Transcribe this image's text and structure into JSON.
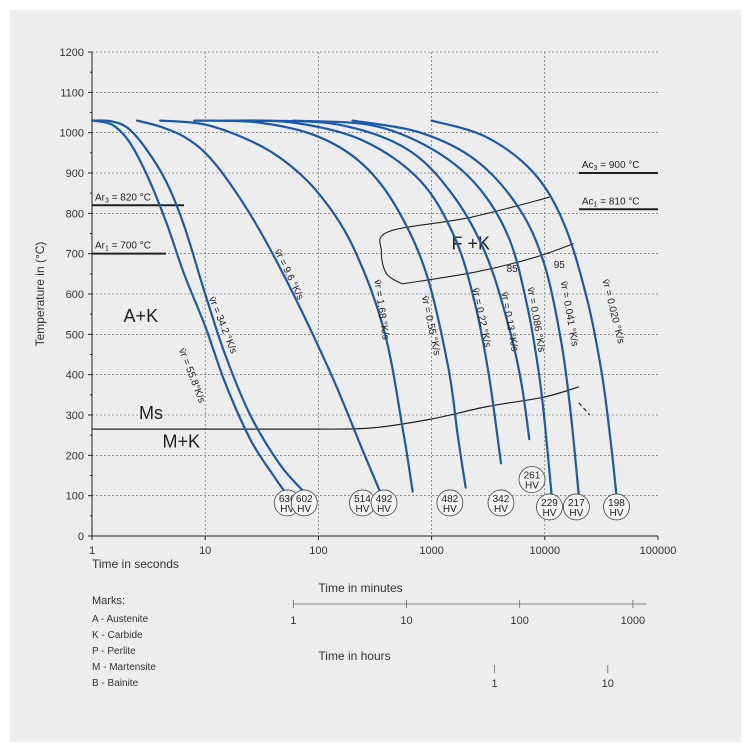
{
  "chart_data": {
    "type": "line",
    "title": "",
    "xlabel": "Time in seconds",
    "ylabel": "Temperature in (°C)",
    "x_scale": "log",
    "xlim": [
      1,
      100000
    ],
    "ylim": [
      0,
      1200
    ],
    "x_ticks": [
      "1",
      "10",
      "100",
      "1000",
      "10000",
      "100000"
    ],
    "y_ticks": [
      "0",
      "100",
      "200",
      "300",
      "400",
      "500",
      "600",
      "700",
      "800",
      "900",
      "1000",
      "1100",
      "1200"
    ],
    "grid": "vertical dashed at decades, horizontal dashed every 100 °C",
    "series": [
      {
        "name": "v̄r = 55.8 °K/s",
        "x": [
          1,
          1.5,
          2.1,
          3,
          4.5,
          6.5,
          10,
          15,
          25,
          40,
          57
        ],
        "y": [
          1030,
          1020,
          980,
          900,
          780,
          650,
          520,
          380,
          240,
          150,
          90
        ]
      },
      {
        "name": "v̄r = 34.2 °K/s",
        "x": [
          1,
          1.5,
          2.1,
          3,
          4.5,
          6.5,
          10,
          15,
          25,
          45,
          74
        ],
        "y": [
          1030,
          1028,
          1010,
          960,
          880,
          770,
          600,
          450,
          300,
          180,
          110
        ]
      },
      {
        "name": "v̄r = 9.6 °K/s",
        "x": [
          2.5,
          4,
          6.5,
          10,
          16,
          30,
          60,
          130,
          240,
          350
        ],
        "y": [
          1030,
          1015,
          990,
          950,
          880,
          760,
          600,
          400,
          220,
          110
        ]
      },
      {
        "name": "v̄r = 1.68 °K/s",
        "x": [
          4,
          10,
          25,
          50,
          100,
          200,
          380,
          560,
          680
        ],
        "y": [
          1030,
          1020,
          980,
          930,
          850,
          720,
          510,
          260,
          110
        ]
      },
      {
        "name": "v̄r = 0.55 °K/s",
        "x": [
          8,
          30,
          100,
          250,
          500,
          900,
          1400,
          1700,
          2000
        ],
        "y": [
          1030,
          1025,
          990,
          920,
          810,
          650,
          420,
          250,
          120
        ]
      },
      {
        "name": "v̄r = 0.22 °K/s",
        "x": [
          15,
          60,
          250,
          800,
          1600,
          2400,
          3200,
          4100
        ],
        "y": [
          1030,
          1025,
          980,
          880,
          740,
          580,
          400,
          180
        ]
      },
      {
        "name": "v̄r = 0.13 °K/s",
        "x": [
          30,
          150,
          600,
          1500,
          3000,
          4800,
          6200,
          7300
        ],
        "y": [
          1030,
          1020,
          960,
          850,
          700,
          520,
          380,
          240
        ]
      },
      {
        "name": "v̄r = 0.086 °K/s",
        "x": [
          60,
          300,
          1000,
          2500,
          4800,
          7000,
          8800,
          10000,
          11500
        ],
        "y": [
          1030,
          1018,
          960,
          870,
          740,
          570,
          410,
          280,
          100
        ]
      },
      {
        "name": "v̄r = 0.041 °K/s",
        "x": [
          200,
          800,
          2500,
          6000,
          10000,
          14000,
          17000,
          20000
        ],
        "y": [
          1030,
          1000,
          930,
          810,
          670,
          480,
          300,
          100
        ]
      },
      {
        "name": "v̄r = 0.020 °K/s",
        "x": [
          1000,
          3000,
          8000,
          15000,
          24000,
          32000,
          38000,
          43000
        ],
        "y": [
          1030,
          990,
          900,
          770,
          580,
          400,
          240,
          100
        ]
      }
    ],
    "ms_line": {
      "label": "Ms",
      "x": [
        1,
        10,
        100,
        300,
        1000,
        3000,
        10000,
        20000
      ],
      "y": [
        265,
        265,
        265,
        268,
        290,
        320,
        345,
        370
      ]
    },
    "ms_dashed": {
      "x": [
        20000,
        25000
      ],
      "y": [
        330,
        300
      ]
    },
    "ferrite_region": {
      "label": "F +K",
      "start": {
        "x": [
          11000,
          2200,
          420,
          360,
          400,
          550
        ],
        "y": [
          840,
          790,
          755,
          705,
          650,
          625
        ]
      },
      "end": {
        "x": [
          550,
          2500,
          8000,
          18000
        ],
        "y": [
          625,
          655,
          690,
          725
        ]
      }
    },
    "ferrite_percent": [
      {
        "text": "85",
        "x": 4600,
        "y": 655
      },
      {
        "text": "95",
        "x": 12000,
        "y": 665
      }
    ],
    "regions": [
      {
        "text": "A+K",
        "x": 1.9,
        "y": 530
      },
      {
        "text": "Ms",
        "x": 2.6,
        "y": 290
      },
      {
        "text": "M+K",
        "x": 4.2,
        "y": 220
      }
    ],
    "reference_lines": [
      {
        "prefix": "Ar",
        "sub": "3",
        "value": " = 820 °C",
        "y": 820,
        "x_from": 1,
        "x_to": 6.5,
        "side": "left"
      },
      {
        "prefix": "Ar",
        "sub": "1",
        "value": " = 700 °C",
        "y": 700,
        "x_from": 1,
        "x_to": 4.5,
        "side": "left"
      },
      {
        "prefix": "Ac",
        "sub": "3",
        "value": " = 900 °C",
        "y": 900,
        "x_from": 20000,
        "x_to": 100000,
        "side": "right"
      },
      {
        "prefix": "Ac",
        "sub": "1",
        "value": " = 810 °C",
        "y": 810,
        "x_from": 20000,
        "x_to": 100000,
        "side": "right"
      }
    ],
    "hardness": [
      {
        "value": "636",
        "unit": "HV",
        "x": 53,
        "y": 82
      },
      {
        "value": "602",
        "unit": "HV",
        "x": 75,
        "y": 82
      },
      {
        "value": "514",
        "unit": "HV",
        "x": 245,
        "y": 82
      },
      {
        "value": "492",
        "unit": "HV",
        "x": 380,
        "y": 82
      },
      {
        "value": "482",
        "unit": "HV",
        "x": 1450,
        "y": 82
      },
      {
        "value": "342",
        "unit": "HV",
        "x": 4100,
        "y": 82
      },
      {
        "value": "261",
        "unit": "HV",
        "x": 7700,
        "y": 140
      },
      {
        "value": "229",
        "unit": "HV",
        "x": 11000,
        "y": 72
      },
      {
        "value": "217",
        "unit": "HV",
        "x": 19000,
        "y": 72
      },
      {
        "value": "198",
        "unit": "HV",
        "x": 43000,
        "y": 72
      }
    ],
    "curve_labels": [
      {
        "text": "v̄r = 55.8°K/s",
        "x": 7.2,
        "y": 395,
        "rotate": 69
      },
      {
        "text": "v̄r = 34.2 °K/s",
        "x": 13.5,
        "y": 520,
        "rotate": 68
      },
      {
        "text": "v̄r = 9.6 °K/s",
        "x": 52,
        "y": 645,
        "rotate": 64
      },
      {
        "text": "v̄r = 1.68 °K/s",
        "x": 340,
        "y": 560,
        "rotate": 82
      },
      {
        "text": "v̄r = 0.55 °K/s",
        "x": 930,
        "y": 520,
        "rotate": 78
      },
      {
        "text": "v̄r = 0.22 °K/s",
        "x": 2600,
        "y": 540,
        "rotate": 78
      },
      {
        "text": "v̄r = 0.13 °K/s",
        "x": 4600,
        "y": 530,
        "rotate": 80
      },
      {
        "text": "v̄r = 0.086 °K/s",
        "x": 7900,
        "y": 535,
        "rotate": 80
      },
      {
        "text": "v̄r = 0.041 °K/s",
        "x": 15500,
        "y": 550,
        "rotate": 80
      },
      {
        "text": "v̄r = 0.020 °K/s",
        "x": 38000,
        "y": 555,
        "rotate": 76
      }
    ],
    "secondary_axes": [
      {
        "label": "Time in minutes",
        "ticks": [
          "1",
          "10",
          "100",
          "1000"
        ]
      },
      {
        "label": "Time in hours",
        "ticks": [
          "1",
          "10"
        ]
      }
    ]
  },
  "legend": {
    "title": "Marks:",
    "items": [
      "A - Austenite",
      "K - Carbide",
      "P - Perlite",
      "M - Martensite",
      "B - Bainite"
    ]
  },
  "colors": {
    "curve": "#1a5aa8",
    "line": "#222222",
    "grid": "#555555",
    "background": "#ededed"
  }
}
